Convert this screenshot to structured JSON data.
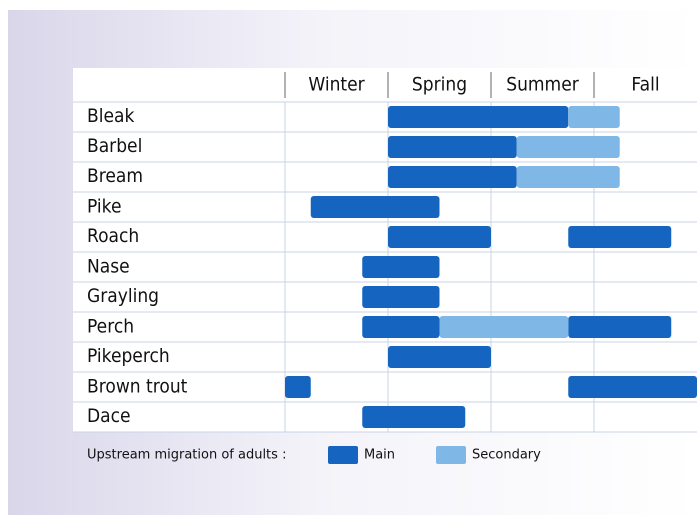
{
  "chart_data": {
    "type": "gantt",
    "seasons": [
      "Winter",
      "Spring",
      "Summer",
      "Fall"
    ],
    "xlim": [
      0,
      12
    ],
    "categories": [
      "Bleak",
      "Barbel",
      "Bream",
      "Pike",
      "Roach",
      "Nase",
      "Grayling",
      "Perch",
      "Pikeperch",
      "Brown trout",
      "Dace"
    ],
    "legend_title": "Upstream migration of adults :",
    "series": [
      {
        "name": "Main",
        "color": "#1565c0",
        "values": [
          [
            [
              3,
              8.25
            ]
          ],
          [
            [
              3,
              6.75
            ]
          ],
          [
            [
              3,
              6.75
            ]
          ],
          [
            [
              0.75,
              4.5
            ]
          ],
          [
            [
              3,
              6
            ],
            [
              8.25,
              11.25
            ]
          ],
          [
            [
              2.25,
              4.5
            ]
          ],
          [
            [
              2.25,
              4.5
            ]
          ],
          [
            [
              2.25,
              4.5
            ],
            [
              8.25,
              11.25
            ]
          ],
          [
            [
              3,
              6
            ]
          ],
          [
            [
              0,
              0.75
            ],
            [
              8.25,
              12
            ]
          ],
          [
            [
              2.25,
              5.25
            ]
          ]
        ]
      },
      {
        "name": "Secondary",
        "color": "#7fb8e6",
        "values": [
          [
            [
              8.25,
              9.75
            ]
          ],
          [
            [
              6.75,
              9.75
            ]
          ],
          [
            [
              6.75,
              9.75
            ]
          ],
          [],
          [],
          [],
          [],
          [
            [
              4.5,
              8.25
            ]
          ],
          [],
          [],
          []
        ]
      }
    ],
    "grid": true
  }
}
